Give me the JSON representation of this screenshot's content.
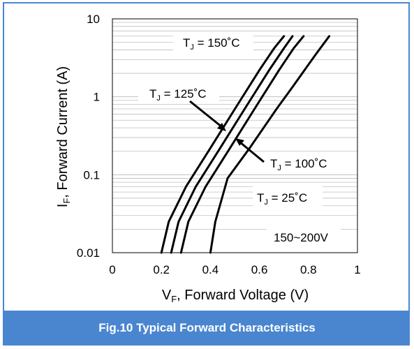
{
  "caption": "Fig.10 Typical Forward Characteristics",
  "colors": {
    "accent": "#4a86cf",
    "curve": "#000000",
    "grid": "#bfbfbf"
  },
  "chart_data": {
    "type": "line",
    "xlabel_main": "V",
    "xlabel_sub": "F",
    "xlabel_rest": ", Forward Voltage (V)",
    "ylabel_main": "I",
    "ylabel_sub": "F",
    "ylabel_rest": ", Forward Current (A)",
    "xlim": [
      0,
      1
    ],
    "ylim": [
      0.01,
      10
    ],
    "y_scale": "log",
    "x_ticks": [
      "0",
      "0.2",
      "0.4",
      "0.6",
      "0.8",
      "1"
    ],
    "y_ticks": [
      "0.01",
      "0.1",
      "1",
      "10"
    ],
    "grid": true,
    "series": [
      {
        "name": "T_J = 150°C",
        "x": [
          0.2,
          0.23,
          0.3,
          0.4,
          0.5,
          0.6,
          0.66,
          0.7
        ],
        "y": [
          0.01,
          0.025,
          0.07,
          0.22,
          0.7,
          2.2,
          4.2,
          6
        ]
      },
      {
        "name": "T_J = 125°C",
        "x": [
          0.24,
          0.27,
          0.34,
          0.44,
          0.54,
          0.64,
          0.7,
          0.735
        ],
        "y": [
          0.01,
          0.025,
          0.07,
          0.22,
          0.7,
          2.2,
          4.2,
          6
        ]
      },
      {
        "name": "T_J = 100°C",
        "x": [
          0.28,
          0.31,
          0.38,
          0.48,
          0.58,
          0.68,
          0.74,
          0.78
        ],
        "y": [
          0.01,
          0.025,
          0.07,
          0.22,
          0.7,
          2.2,
          4.2,
          6
        ]
      },
      {
        "name": "T_J = 25°C",
        "x": [
          0.4,
          0.42,
          0.47,
          0.56,
          0.67,
          0.74,
          0.83,
          0.885
        ],
        "y": [
          0.01,
          0.025,
          0.09,
          0.22,
          0.7,
          1.4,
          3.5,
          6
        ]
      }
    ],
    "annotations": [
      {
        "main": "T",
        "sub": "J",
        "rest": " = 150˚C"
      },
      {
        "main": "T",
        "sub": "J",
        "rest": " = 125˚C"
      },
      {
        "main": "T",
        "sub": "J",
        "rest": " = 100˚C"
      },
      {
        "main": "T",
        "sub": "J",
        "rest": " = 25˚C"
      }
    ],
    "voltage_label": "150~200V"
  }
}
